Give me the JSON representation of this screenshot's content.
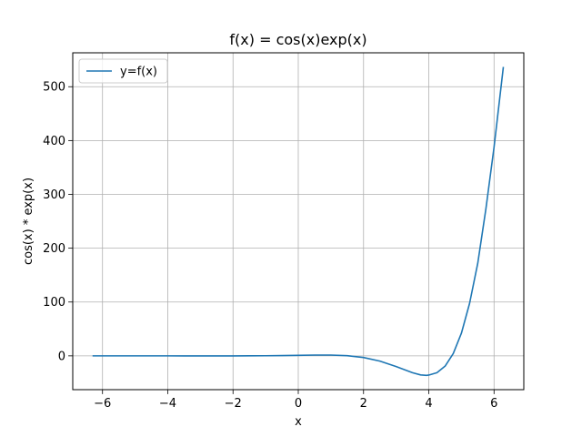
{
  "chart_data": {
    "type": "line",
    "title": "f(x) = cos(x)exp(x)",
    "xlabel": "x",
    "ylabel": "cos(x) * exp(x)",
    "xlim": [
      -6.912,
      6.912
    ],
    "ylim": [
      -62.8,
      563.0
    ],
    "grid": true,
    "legend": {
      "placement": "top-left"
    },
    "x_ticks": [
      {
        "value": -6,
        "label": "−6"
      },
      {
        "value": -4,
        "label": "−4"
      },
      {
        "value": -2,
        "label": "−2"
      },
      {
        "value": 0,
        "label": "0"
      },
      {
        "value": 2,
        "label": "2"
      },
      {
        "value": 4,
        "label": "4"
      },
      {
        "value": 6,
        "label": "6"
      }
    ],
    "y_ticks": [
      {
        "value": 0,
        "label": "0"
      },
      {
        "value": 100,
        "label": "100"
      },
      {
        "value": 200,
        "label": "200"
      },
      {
        "value": 300,
        "label": "300"
      },
      {
        "value": 400,
        "label": "400"
      },
      {
        "value": 500,
        "label": "500"
      }
    ],
    "series": [
      {
        "name": "y=f(x)",
        "color": "#1f77b4",
        "x": [
          -6.283,
          -5.5,
          -5.0,
          -4.5,
          -4.0,
          -3.5,
          -3.0,
          -2.5,
          -2.0,
          -1.5,
          -1.0,
          -0.5,
          0.0,
          0.5,
          1.0,
          1.5,
          2.0,
          2.5,
          3.0,
          3.25,
          3.5,
          3.75,
          3.93,
          4.0,
          4.25,
          4.5,
          4.75,
          5.0,
          5.25,
          5.5,
          5.75,
          6.0,
          6.283
        ],
        "y": [
          0.0019,
          0.0029,
          0.0019,
          -0.0024,
          -0.012,
          -0.0284,
          -0.0493,
          -0.0658,
          -0.0563,
          0.0158,
          0.1988,
          0.5323,
          1.0,
          1.4469,
          1.4687,
          0.317,
          -3.0749,
          -9.7655,
          -19.8845,
          -25.579,
          -31.3624,
          -35.3975,
          -36.19,
          -35.6877,
          -31.289,
          -19.0832,
          4.2939,
          42.0992,
          97.43,
          171.75,
          272.89,
          387.65,
          535.49
        ]
      }
    ]
  }
}
